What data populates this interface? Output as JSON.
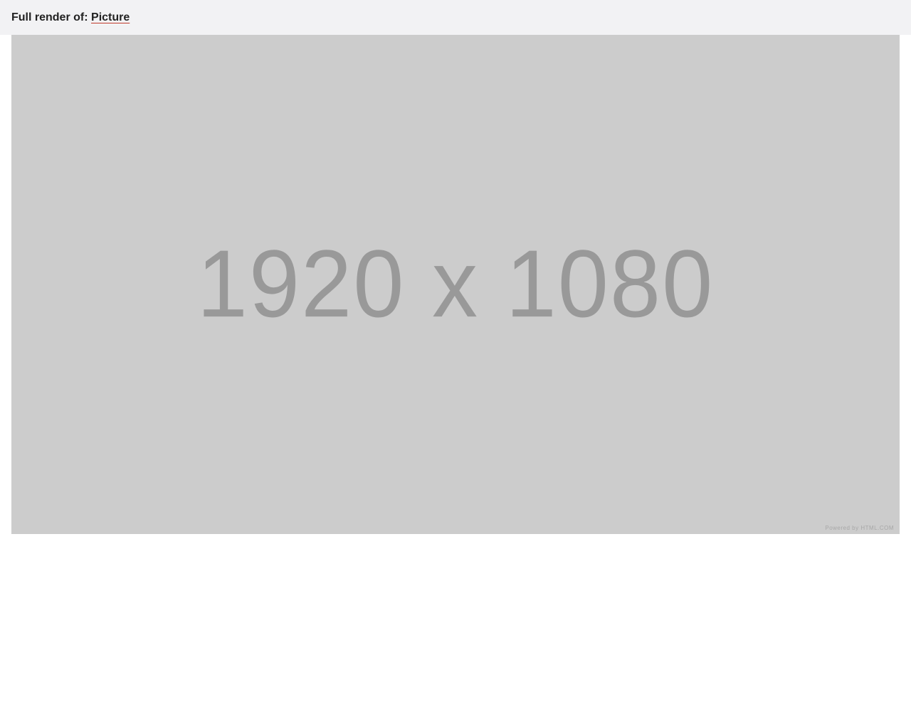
{
  "header": {
    "prefix": "Full render of:",
    "link_label": "Picture"
  },
  "image": {
    "dimensions_text": "1920 x 1080",
    "credit_text": "Powered by HTML.COM"
  },
  "colors": {
    "header_background": "#f2f2f4",
    "placeholder_background": "#cccccc",
    "placeholder_text": "#999999",
    "link_underline": "#c0392b"
  }
}
